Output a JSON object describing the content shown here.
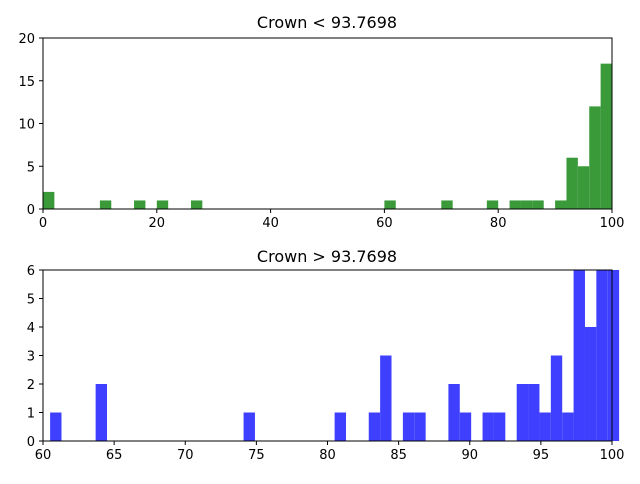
{
  "chart_data": [
    {
      "type": "bar",
      "title": "Crown < 93.7698",
      "xlim": [
        0,
        100
      ],
      "ylim": [
        0,
        20
      ],
      "xticks": [
        0,
        20,
        40,
        60,
        80,
        100
      ],
      "yticks": [
        0,
        5,
        10,
        15,
        20
      ],
      "bin_width": 2,
      "color": "#3a9a3a",
      "bins": [
        {
          "x": 0,
          "count": 2
        },
        {
          "x": 10,
          "count": 1
        },
        {
          "x": 16,
          "count": 1
        },
        {
          "x": 20,
          "count": 1
        },
        {
          "x": 26,
          "count": 1
        },
        {
          "x": 60,
          "count": 1
        },
        {
          "x": 70,
          "count": 1
        },
        {
          "x": 78,
          "count": 1
        },
        {
          "x": 82,
          "count": 1
        },
        {
          "x": 84,
          "count": 1
        },
        {
          "x": 86,
          "count": 1
        },
        {
          "x": 90,
          "count": 1
        },
        {
          "x": 92,
          "count": 6
        },
        {
          "x": 94,
          "count": 5
        },
        {
          "x": 96,
          "count": 12
        },
        {
          "x": 98,
          "count": 17
        }
      ]
    },
    {
      "type": "bar",
      "title": "Crown > 93.7698",
      "xlim": [
        60,
        100
      ],
      "ylim": [
        0,
        6
      ],
      "xticks": [
        60,
        65,
        70,
        75,
        80,
        85,
        90,
        95,
        100
      ],
      "yticks": [
        0,
        1,
        2,
        3,
        4,
        5,
        6
      ],
      "bin_width": 0.8,
      "color": "#3f3fff",
      "bins": [
        {
          "x": 60.5,
          "count": 1
        },
        {
          "x": 63.7,
          "count": 2
        },
        {
          "x": 74.1,
          "count": 1
        },
        {
          "x": 80.5,
          "count": 1
        },
        {
          "x": 82.9,
          "count": 1
        },
        {
          "x": 83.7,
          "count": 3
        },
        {
          "x": 85.3,
          "count": 1
        },
        {
          "x": 86.1,
          "count": 1
        },
        {
          "x": 88.5,
          "count": 2
        },
        {
          "x": 89.3,
          "count": 1
        },
        {
          "x": 90.9,
          "count": 1
        },
        {
          "x": 91.7,
          "count": 1
        },
        {
          "x": 93.3,
          "count": 2
        },
        {
          "x": 94.1,
          "count": 2
        },
        {
          "x": 94.9,
          "count": 1
        },
        {
          "x": 95.7,
          "count": 3
        },
        {
          "x": 96.5,
          "count": 1
        },
        {
          "x": 97.3,
          "count": 6
        },
        {
          "x": 98.1,
          "count": 4
        },
        {
          "x": 98.9,
          "count": 6
        },
        {
          "x": 99.7,
          "count": 6
        }
      ]
    }
  ]
}
